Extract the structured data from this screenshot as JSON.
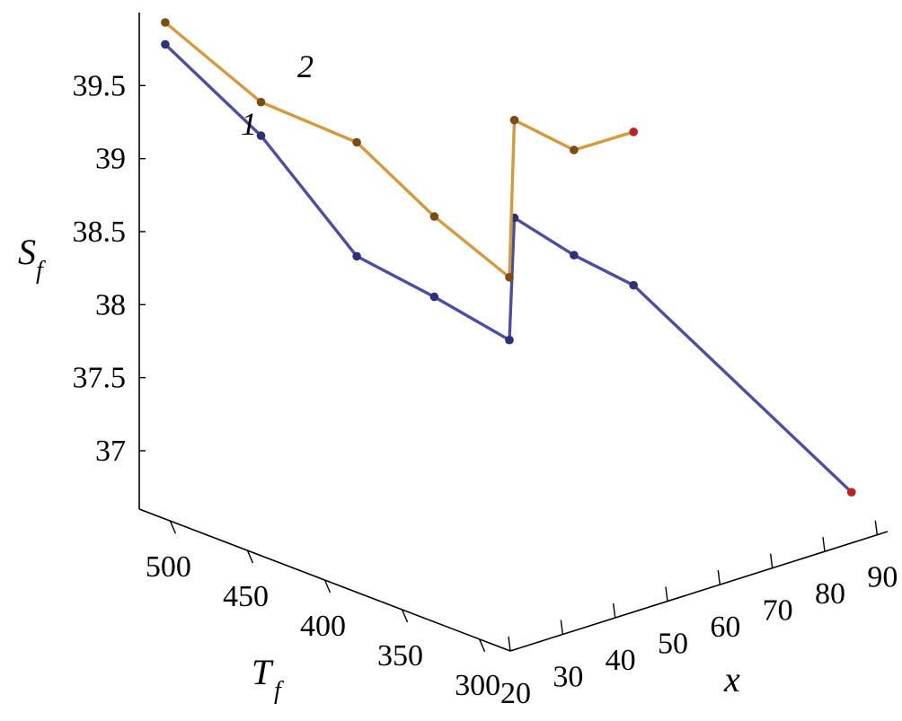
{
  "chart_data": {
    "type": "line3d",
    "axes": {
      "x": {
        "label": "x",
        "ticks": [
          20,
          30,
          40,
          50,
          60,
          70,
          80,
          90
        ],
        "range": [
          20,
          92
        ]
      },
      "t": {
        "label": "T",
        "label_sub": "f",
        "ticks": [
          500,
          450,
          400,
          350,
          300
        ],
        "range": [
          280,
          520
        ]
      },
      "s": {
        "label": "S",
        "label_sub": "f",
        "ticks": [
          37,
          37.5,
          38,
          38.5,
          39,
          39.5
        ],
        "range": [
          36.6,
          40.0
        ]
      }
    },
    "series": [
      {
        "name": "1",
        "color": "#4a4fa3",
        "marker_color": "#2d3178",
        "end_marker_color": "#c0201e",
        "points": [
          {
            "x": 22,
            "t": 510,
            "s": 39.8
          },
          {
            "x": 27,
            "t": 465,
            "s": 39.3
          },
          {
            "x": 32,
            "t": 420,
            "s": 38.6
          },
          {
            "x": 35,
            "t": 380,
            "s": 38.45
          },
          {
            "x": 39,
            "t": 345,
            "s": 38.25
          },
          {
            "x": 37,
            "t": 335,
            "s": 39.15
          },
          {
            "x": 41,
            "t": 310,
            "s": 38.95
          },
          {
            "x": 45,
            "t": 285,
            "s": 38.8
          },
          {
            "x": 91,
            "t": 300,
            "s": 36.8
          }
        ]
      },
      {
        "name": "2",
        "color": "#d69a3c",
        "marker_color": "#7a4e12",
        "end_marker_color": "#c0201e",
        "points": [
          {
            "x": 22,
            "t": 510,
            "s": 39.95
          },
          {
            "x": 27,
            "t": 465,
            "s": 39.53
          },
          {
            "x": 32,
            "t": 420,
            "s": 39.38
          },
          {
            "x": 35,
            "t": 380,
            "s": 39.0
          },
          {
            "x": 39,
            "t": 345,
            "s": 38.68
          },
          {
            "x": 37,
            "t": 335,
            "s": 39.82
          },
          {
            "x": 41,
            "t": 310,
            "s": 39.67
          },
          {
            "x": 45,
            "t": 285,
            "s": 39.85
          }
        ]
      }
    ]
  }
}
